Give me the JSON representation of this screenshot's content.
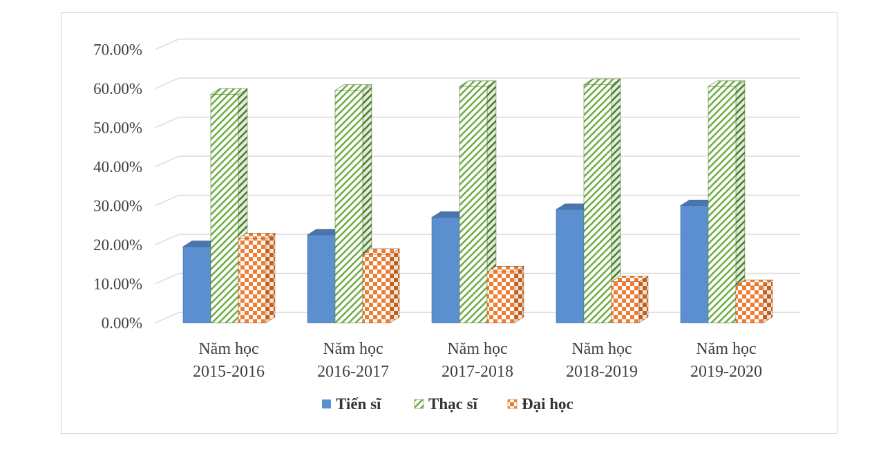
{
  "chart_data": {
    "type": "bar",
    "title": "",
    "xlabel": "",
    "ylabel": "",
    "ylim": [
      0,
      70
    ],
    "yticks": [
      "0.00%",
      "10.00%",
      "20.00%",
      "30.00%",
      "40.00%",
      "50.00%",
      "60.00%",
      "70.00%"
    ],
    "categories": [
      [
        "Năm học",
        "2015-2016"
      ],
      [
        "Năm học",
        "2016-2017"
      ],
      [
        "Năm học",
        "2017-2018"
      ],
      [
        "Năm học",
        "2018-2019"
      ],
      [
        "Năm học",
        "2019-2020"
      ]
    ],
    "series": [
      {
        "name": "Tiến sĩ",
        "values": [
          19.5,
          22.5,
          27.0,
          29.0,
          30.0
        ],
        "color": "#5b8fd0",
        "pattern": "solid"
      },
      {
        "name": "Thạc sĩ",
        "values": [
          58.5,
          59.5,
          60.5,
          61.0,
          60.5
        ],
        "color": "#70ad47",
        "pattern": "diagonal-hatch"
      },
      {
        "name": "Đại học",
        "values": [
          21.5,
          17.5,
          13.0,
          10.5,
          9.5
        ],
        "color": "#ed7d31",
        "pattern": "checkerboard"
      }
    ],
    "grid": true,
    "legend": "bottom"
  }
}
